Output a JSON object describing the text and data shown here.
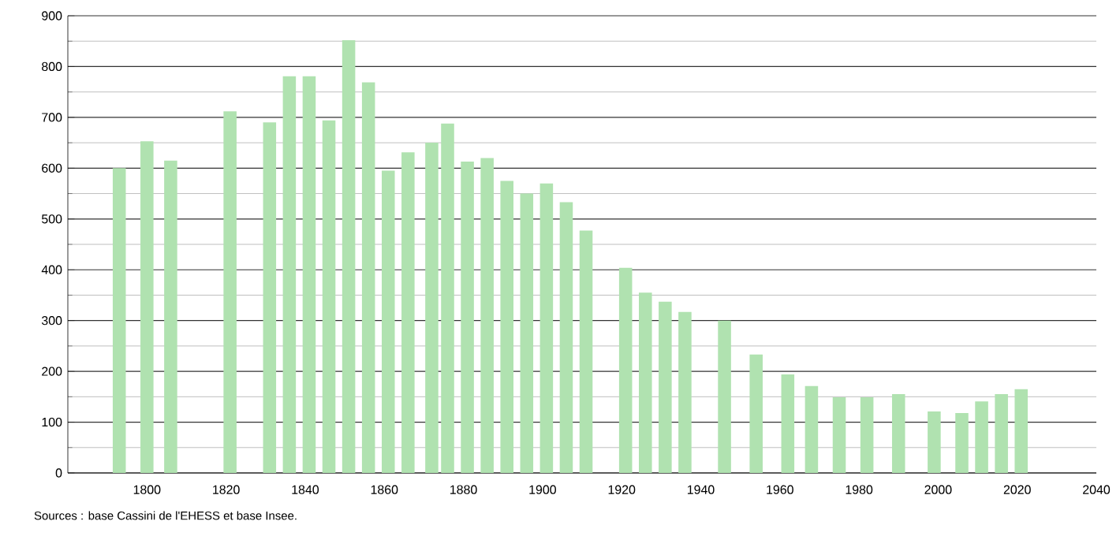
{
  "chart_data": {
    "type": "bar",
    "x": [
      1793,
      1800,
      1806,
      1821,
      1831,
      1836,
      1841,
      1846,
      1851,
      1856,
      1861,
      1866,
      1872,
      1876,
      1881,
      1886,
      1891,
      1896,
      1901,
      1906,
      1911,
      1921,
      1926,
      1931,
      1936,
      1946,
      1954,
      1962,
      1968,
      1975,
      1982,
      1990,
      1999,
      2006,
      2011,
      2016,
      2021
    ],
    "values": [
      600,
      653,
      615,
      712,
      690,
      781,
      781,
      694,
      852,
      769,
      595,
      631,
      650,
      688,
      613,
      620,
      575,
      550,
      570,
      533,
      477,
      404,
      355,
      337,
      317,
      300,
      233,
      194,
      171,
      149,
      149,
      155,
      121,
      118,
      141,
      155,
      165
    ],
    "color": "#b0e2b0",
    "xlim": [
      1780,
      2040
    ],
    "xticks": [
      1800,
      1820,
      1840,
      1860,
      1880,
      1900,
      1920,
      1940,
      1960,
      1980,
      2000,
      2020,
      2040
    ],
    "ylim": [
      0,
      900
    ],
    "yticks": [
      0,
      100,
      200,
      300,
      400,
      500,
      600,
      700,
      800,
      900
    ],
    "grid": "y",
    "annotations": [
      "Sources : base Cassini de l'EHESS et base Insee."
    ]
  }
}
